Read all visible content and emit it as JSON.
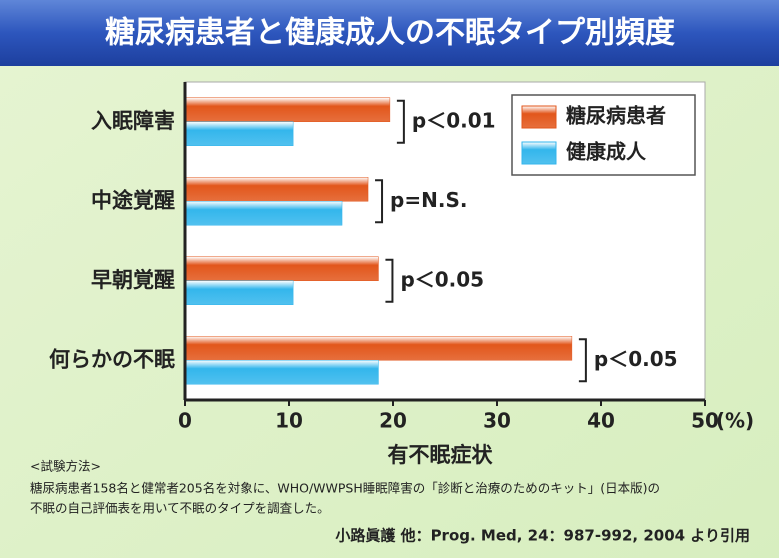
{
  "chart_data": {
    "type": "bar",
    "orientation": "horizontal",
    "title": "糖尿病患者と健康成人の不眠タイプ別頻度",
    "categories": [
      "入眠障害",
      "中途覚醒",
      "早朝覚醒",
      "何らかの不眠"
    ],
    "series": [
      {
        "name": "糖尿病患者",
        "color": "#e2561b",
        "values": [
          19.7,
          17.6,
          18.6,
          37.2
        ]
      },
      {
        "name": "健康成人",
        "color": "#33b6ec",
        "values": [
          10.4,
          15.1,
          10.4,
          18.6
        ]
      }
    ],
    "annotations": [
      "p＜0.01",
      "p=N.S.",
      "p＜0.05",
      "p＜0.05"
    ],
    "xlim": [
      0,
      50
    ],
    "xticks": [
      0,
      10,
      20,
      30,
      40,
      50
    ],
    "xlabel": "有不眠症状",
    "unit": "(%)",
    "legend": "upper right"
  },
  "notes": {
    "heading": "<試験方法>",
    "lines": [
      "糖尿病患者158名と健常者205名を対象に、WHO/WWPSH睡眠障害の「診断と治療のためのキット」(日本版)の",
      "不眠の自己評価表を用いて不眠のタイプを調査した。"
    ],
    "citation": "小路眞護 他：Prog. Med, 24：987-992, 2004 より引用"
  }
}
